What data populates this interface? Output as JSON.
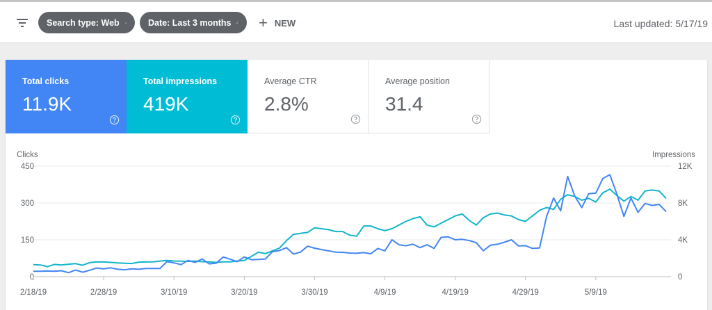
{
  "toolbar": {
    "search_type_chip": "Search type: Web",
    "date_chip": "Date: Last 3 months",
    "new_label": "NEW",
    "last_updated": "Last updated: 5/17/19"
  },
  "metrics": [
    {
      "label": "Total clicks",
      "value": "11.9K",
      "color": "#4285f4"
    },
    {
      "label": "Total impressions",
      "value": "419K",
      "color": "#00bcd4"
    },
    {
      "label": "Average CTR",
      "value": "2.8%"
    },
    {
      "label": "Average position",
      "value": "31.4"
    }
  ],
  "chart_data": {
    "type": "line",
    "left_axis_title": "Clicks",
    "right_axis_title": "Impressions",
    "left_ticks": [
      "450",
      "300",
      "150",
      "0"
    ],
    "right_ticks": [
      "12K",
      "8K",
      "4K",
      "0"
    ],
    "ylim_left": [
      0,
      450
    ],
    "ylim_right": [
      0,
      12000
    ],
    "x_tick_labels": [
      "2/18/19",
      "2/28/19",
      "3/10/19",
      "3/20/19",
      "3/30/19",
      "4/9/19",
      "4/19/19",
      "4/29/19",
      "5/9/19"
    ],
    "series": [
      {
        "name": "Clicks",
        "axis": "left",
        "color": "#4285f4",
        "values": [
          22,
          22,
          23,
          22,
          24,
          16,
          27,
          18,
          26,
          35,
          32,
          36,
          30,
          28,
          32,
          30,
          33,
          33,
          33,
          61,
          56,
          49,
          66,
          58,
          72,
          52,
          55,
          80,
          71,
          61,
          80,
          69,
          70,
          72,
          102,
          106,
          118,
          92,
          100,
          124,
          116,
          110,
          105,
          100,
          99,
          96,
          95,
          98,
          93,
          115,
          105,
          150,
          130,
          126,
          132,
          118,
          130,
          115,
          160,
          162,
          150,
          152,
          147,
          138,
          105,
          128,
          132,
          140,
          150,
          125,
          126,
          115,
          117,
          245,
          320,
          268,
          408,
          328,
          281,
          338,
          340,
          400,
          415,
          336,
          245,
          320,
          262,
          298,
          290,
          294,
          265
        ]
      },
      {
        "name": "Impressions",
        "axis": "right",
        "color": "#12b5cb",
        "values": [
          1300,
          1270,
          1090,
          1330,
          1270,
          1350,
          1410,
          1240,
          1520,
          1610,
          1590,
          1550,
          1490,
          1450,
          1430,
          1580,
          1590,
          1610,
          1690,
          1760,
          1700,
          1680,
          1660,
          1690,
          1620,
          1600,
          1550,
          1610,
          1600,
          1700,
          1750,
          2200,
          2650,
          2500,
          2800,
          3100,
          3900,
          4600,
          4700,
          4800,
          5300,
          5200,
          5100,
          4900,
          4900,
          4500,
          4400,
          5500,
          5500,
          5200,
          5000,
          5200,
          5600,
          6000,
          6300,
          6500,
          5600,
          5400,
          5800,
          6200,
          6600,
          6800,
          6100,
          5600,
          6400,
          6800,
          6900,
          6700,
          6600,
          6200,
          6000,
          6600,
          7200,
          7500,
          7300,
          8400,
          8900,
          8700,
          8300,
          8500,
          8100,
          9100,
          9500,
          8800,
          8200,
          8700,
          8300,
          9300,
          9400,
          9300,
          8500
        ]
      }
    ]
  }
}
